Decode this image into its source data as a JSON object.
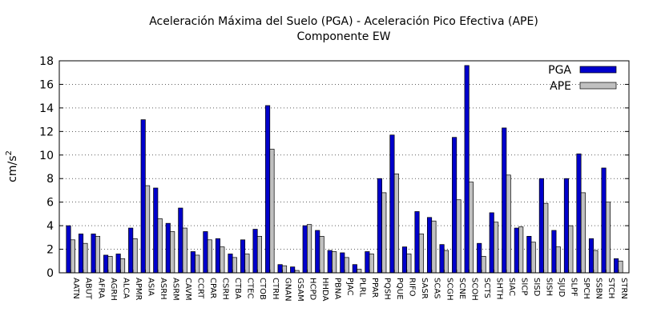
{
  "chart_data": {
    "type": "bar",
    "title": "Aceleración Máxima del Suelo (PGA) -  Aceleración Pico Efectiva (APE)",
    "subtitle": "Componente EW",
    "ylabel_base": "cm/s",
    "ylabel_exp": "2",
    "xlabel": "",
    "ylim": [
      0,
      18
    ],
    "yticks": [
      0,
      2,
      4,
      6,
      8,
      10,
      12,
      14,
      16,
      18
    ],
    "grid": true,
    "legend_position": "top-right",
    "categories": [
      "AATN",
      "ABUT",
      "AFRA",
      "AGRH",
      "ALCA",
      "APMR",
      "ASIA",
      "ASRH",
      "ASRM",
      "CAVM",
      "CCRT",
      "CPAR",
      "CSRH",
      "CTBA",
      "CTEC",
      "CTOB",
      "CTRH",
      "GNAN",
      "GSAM",
      "HCPD",
      "HHDA",
      "PBNA",
      "PJAC",
      "PLRL",
      "PPAR",
      "PQSH",
      "PQUE",
      "RIFO",
      "SASR",
      "SCAS",
      "SCGH",
      "SCNE",
      "SCOH",
      "SCTS",
      "SHTH",
      "SIAC",
      "SICP",
      "SISD",
      "SISH",
      "SJUD",
      "SLPF",
      "SPCH",
      "SSBN",
      "STCH",
      "STRN"
    ],
    "series": [
      {
        "name": "PGA",
        "color": "#0000cc",
        "values": [
          4.0,
          3.3,
          3.3,
          1.5,
          1.6,
          3.8,
          13.0,
          7.2,
          4.2,
          5.5,
          1.8,
          3.5,
          2.9,
          1.6,
          2.8,
          3.7,
          14.2,
          0.7,
          0.5,
          4.0,
          3.6,
          1.9,
          1.7,
          0.7,
          1.8,
          8.0,
          11.7,
          2.2,
          5.2,
          4.7,
          2.4,
          11.5,
          17.6,
          2.5,
          5.1,
          12.3,
          3.8,
          3.1,
          8.0,
          3.6,
          8.0,
          10.1,
          2.9,
          8.9,
          1.2
        ]
      },
      {
        "name": "APE",
        "color": "#c0c0c0",
        "values": [
          2.8,
          2.5,
          3.1,
          1.4,
          1.2,
          2.9,
          7.4,
          4.6,
          3.5,
          3.8,
          1.5,
          2.8,
          2.2,
          1.3,
          1.6,
          3.1,
          10.5,
          0.6,
          0.2,
          4.1,
          3.1,
          1.8,
          1.3,
          0.3,
          1.6,
          6.8,
          8.4,
          1.6,
          3.3,
          4.4,
          1.9,
          6.2,
          7.7,
          1.4,
          4.3,
          8.3,
          3.9,
          2.6,
          5.9,
          2.2,
          4.0,
          6.8,
          1.9,
          6.0,
          1.0
        ]
      }
    ]
  }
}
